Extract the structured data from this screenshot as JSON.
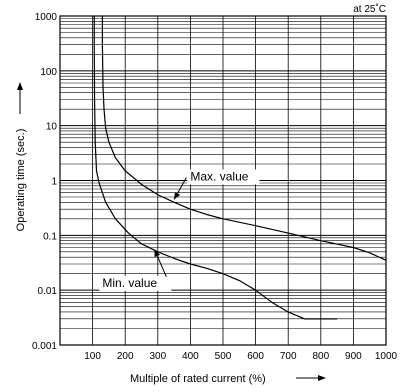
{
  "chart_data": {
    "type": "line",
    "note": "at 25˚C",
    "xlabel": "Multiple of rated current (%)",
    "ylabel": "Operating time (sec.)",
    "xlim": [
      0,
      1000
    ],
    "ylim": [
      0.001,
      1000
    ],
    "y_scale": "log",
    "grid": true,
    "x_ticks": [
      100,
      200,
      300,
      400,
      500,
      600,
      700,
      800,
      900,
      1000
    ],
    "y_ticks": [
      {
        "value": 1000,
        "label": "1000"
      },
      {
        "value": 100,
        "label": "100"
      },
      {
        "value": 10,
        "label": "10"
      },
      {
        "value": 1,
        "label": "1"
      },
      {
        "value": 0.1,
        "label": "0.1"
      },
      {
        "value": 0.01,
        "label": "0.01"
      },
      {
        "value": 0.001,
        "label": "0.001"
      }
    ],
    "annotations": [
      {
        "text": "Max. value",
        "series": "max",
        "x": 400,
        "y": 1.0,
        "arrow_to": [
          350,
          0.45
        ]
      },
      {
        "text": "Min. value",
        "series": "min",
        "x": 130,
        "y": 0.0115,
        "arrow_to": [
          290,
          0.055
        ]
      }
    ],
    "series": [
      {
        "key": "min",
        "x": [
          105,
          105,
          106,
          108,
          112,
          120,
          140,
          170,
          210,
          250,
          300,
          350,
          400,
          450,
          500,
          550,
          600,
          650,
          700,
          750,
          800,
          850
        ],
        "y": [
          1000,
          300,
          30,
          5,
          1.5,
          0.9,
          0.4,
          0.2,
          0.11,
          0.07,
          0.05,
          0.038,
          0.03,
          0.025,
          0.02,
          0.015,
          0.01,
          0.006,
          0.004,
          0.003,
          0.003,
          0.003
        ]
      },
      {
        "key": "max",
        "x": [
          130,
          130,
          132,
          135,
          140,
          150,
          170,
          200,
          250,
          300,
          350,
          400,
          450,
          500,
          600,
          700,
          800,
          900,
          950,
          1000
        ],
        "y": [
          1000,
          300,
          50,
          20,
          9,
          5,
          2.6,
          1.5,
          0.85,
          0.55,
          0.4,
          0.3,
          0.24,
          0.2,
          0.15,
          0.11,
          0.08,
          0.06,
          0.048,
          0.035
        ]
      }
    ]
  }
}
